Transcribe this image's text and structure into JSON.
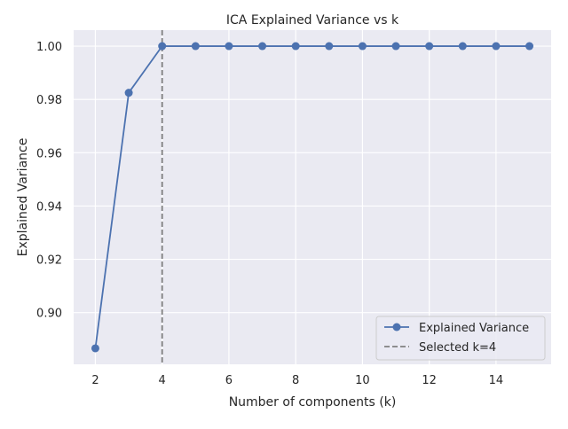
{
  "chart_data": {
    "type": "line",
    "title": "ICA Explained Variance vs k",
    "xlabel": "Number of components (k)",
    "ylabel": "Explained Variance",
    "xlim": [
      1.35,
      15.65
    ],
    "ylim": [
      0.8806,
      1.006
    ],
    "xticks": [
      2,
      4,
      6,
      8,
      10,
      12,
      14
    ],
    "xtick_labels": [
      "2",
      "4",
      "6",
      "8",
      "10",
      "12",
      "14"
    ],
    "yticks": [
      0.9,
      0.92,
      0.94,
      0.96,
      0.98,
      1.0
    ],
    "ytick_labels": [
      "0.90",
      "0.92",
      "0.94",
      "0.96",
      "0.98",
      "1.00"
    ],
    "grid": true,
    "legend_position": "lower-right",
    "series": [
      {
        "name": "Explained Variance",
        "color": "#4c72b0",
        "marker": "circle",
        "x": [
          2,
          3,
          4,
          5,
          6,
          7,
          8,
          9,
          10,
          11,
          12,
          13,
          14,
          15
        ],
        "y": [
          0.8866,
          0.9825,
          1.0,
          1.0,
          1.0,
          1.0,
          1.0,
          1.0,
          1.0,
          1.0,
          1.0,
          1.0,
          1.0,
          1.0
        ]
      }
    ],
    "vline": {
      "x": 4,
      "label": "Selected k=4",
      "color": "#808080",
      "style": "dashed"
    }
  }
}
